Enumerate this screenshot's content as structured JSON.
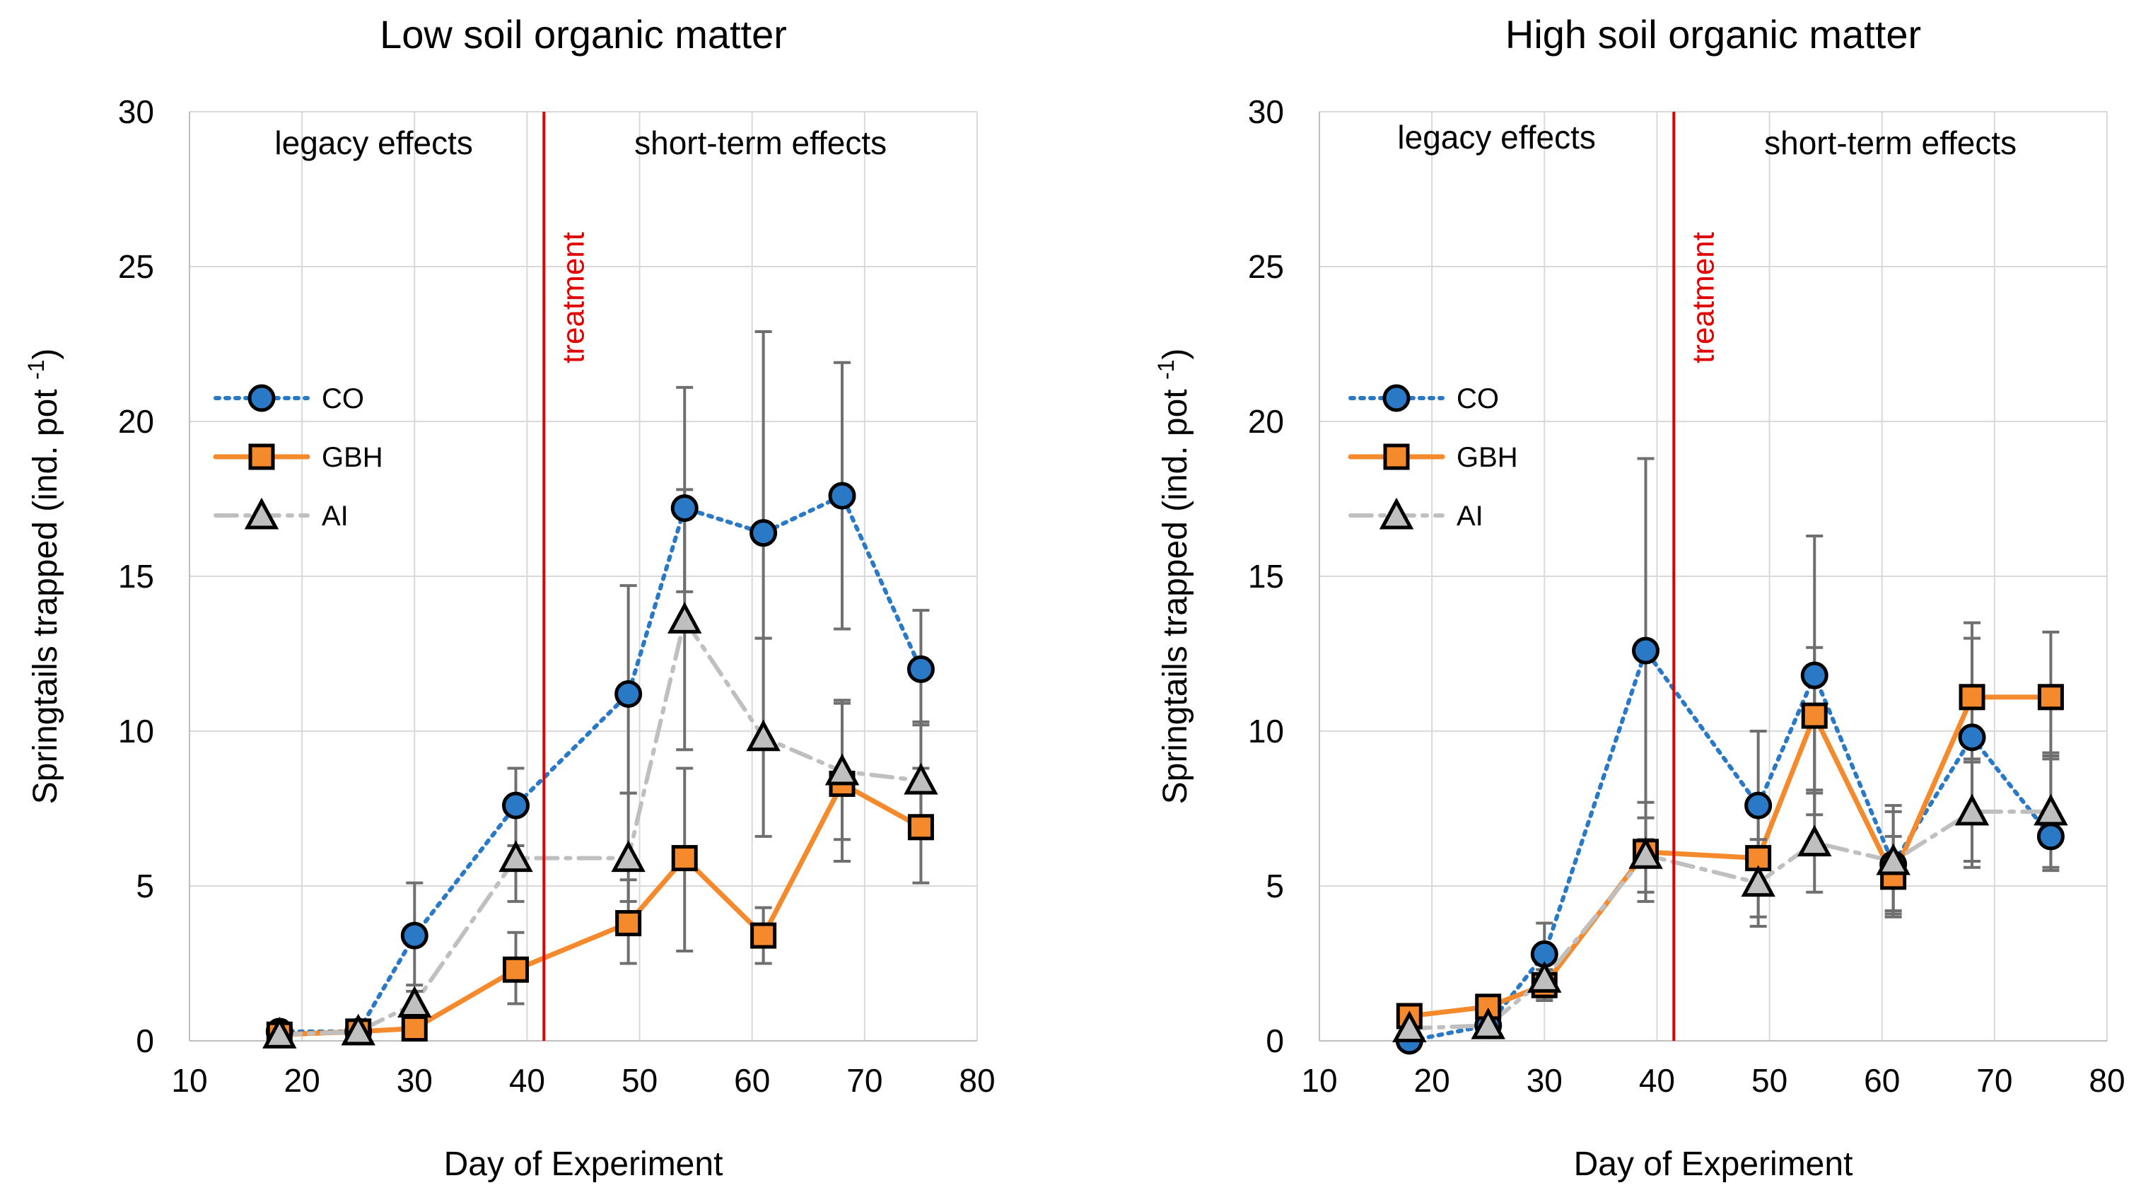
{
  "chart_data": [
    {
      "type": "line",
      "title": "Low soil organic matter",
      "xlabel": "Day of Experiment",
      "ylabel": "Springtails trapped (ind. pot -1)",
      "xlim": [
        10,
        80
      ],
      "ylim": [
        0,
        30
      ],
      "xticks": [
        10,
        20,
        30,
        40,
        50,
        60,
        70,
        80
      ],
      "yticks": [
        0,
        5,
        10,
        15,
        20,
        25,
        30
      ],
      "grid": true,
      "legend_position": "left",
      "regions": {
        "left": "legacy effects",
        "right": "short-term effects"
      },
      "treatment": {
        "x": 41.5,
        "label": "treatment",
        "color": "#e00000"
      },
      "x": [
        18,
        25,
        30,
        39,
        49,
        54,
        61,
        68,
        75
      ],
      "series": [
        {
          "name": "CO",
          "marker": "circle",
          "color": "#2979c6",
          "line": "dotted",
          "values": [
            0.3,
            0.3,
            3.4,
            7.6,
            11.2,
            17.2,
            16.4,
            17.6,
            12.0
          ],
          "err_low": [
            0.3,
            0.3,
            1.8,
            6.3,
            8.0,
            14.5,
            13.0,
            13.3,
            10.2
          ],
          "err_high": [
            0.3,
            0.3,
            5.1,
            8.8,
            14.7,
            21.1,
            22.9,
            21.9,
            13.9
          ]
        },
        {
          "name": "GBH",
          "marker": "square",
          "color": "#f58a2c",
          "line": "solid",
          "values": [
            0.2,
            0.3,
            0.4,
            2.3,
            3.8,
            5.9,
            3.4,
            8.3,
            6.9
          ],
          "err_low": [
            0.2,
            0.3,
            0.3,
            1.2,
            2.5,
            2.9,
            2.5,
            5.8,
            5.1
          ],
          "err_high": [
            0.2,
            0.3,
            0.5,
            3.5,
            5.2,
            8.8,
            4.3,
            10.9,
            8.8
          ]
        },
        {
          "name": "AI",
          "marker": "triangle",
          "color": "#bfbfbf",
          "line": "dashdot",
          "values": [
            0.2,
            0.3,
            1.2,
            5.9,
            5.9,
            13.6,
            9.8,
            8.7,
            8.4
          ],
          "err_low": [
            0.2,
            0.3,
            0.8,
            4.5,
            4.5,
            9.4,
            6.6,
            6.5,
            6.6
          ],
          "err_high": [
            0.2,
            0.3,
            1.6,
            7.3,
            8.0,
            17.8,
            13.0,
            11.0,
            10.3
          ]
        }
      ]
    },
    {
      "type": "line",
      "title": "High soil organic matter",
      "xlabel": "Day of Experiment",
      "ylabel": "Springtails trapped (ind. pot -1)",
      "xlim": [
        10,
        80
      ],
      "ylim": [
        0,
        30
      ],
      "xticks": [
        10,
        20,
        30,
        40,
        50,
        60,
        70,
        80
      ],
      "yticks": [
        0,
        5,
        10,
        15,
        20,
        25,
        30
      ],
      "grid": true,
      "legend_position": "top-left",
      "regions": {
        "left": "legacy effects",
        "right": "short-term effects"
      },
      "treatment": {
        "x": 41.5,
        "label": "treatment",
        "color": "#e00000"
      },
      "x": [
        18,
        25,
        30,
        39,
        49,
        54,
        61,
        68,
        75
      ],
      "series": [
        {
          "name": "CO",
          "marker": "circle",
          "color": "#2979c6",
          "line": "dotted",
          "values": [
            0.0,
            0.5,
            2.8,
            12.6,
            7.6,
            11.8,
            5.7,
            9.8,
            6.6
          ],
          "err_low": [
            0.0,
            0.4,
            1.9,
            6.5,
            5.0,
            7.3,
            4.1,
            5.6,
            5.5
          ],
          "err_high": [
            0.0,
            0.6,
            3.8,
            18.8,
            10.0,
            16.3,
            7.6,
            13.5,
            9.2
          ]
        },
        {
          "name": "GBH",
          "marker": "square",
          "color": "#f58a2c",
          "line": "solid",
          "values": [
            0.8,
            1.1,
            1.8,
            6.1,
            5.9,
            10.5,
            5.3,
            11.1,
            11.1
          ],
          "err_low": [
            0.8,
            1.1,
            1.3,
            4.5,
            4.0,
            8.1,
            4.0,
            9.1,
            9.1
          ],
          "err_high": [
            0.8,
            1.1,
            2.3,
            7.7,
            7.8,
            12.7,
            6.6,
            13.0,
            13.2
          ]
        },
        {
          "name": "AI",
          "marker": "triangle",
          "color": "#bfbfbf",
          "line": "dashdot",
          "values": [
            0.4,
            0.5,
            2.0,
            6.0,
            5.1,
            6.4,
            5.8,
            7.4,
            7.4
          ],
          "err_low": [
            0.4,
            0.5,
            1.4,
            4.8,
            3.7,
            4.8,
            4.2,
            5.8,
            5.6
          ],
          "err_high": [
            0.4,
            0.5,
            2.6,
            7.2,
            6.5,
            8.0,
            7.4,
            9.0,
            9.3
          ]
        }
      ]
    }
  ]
}
